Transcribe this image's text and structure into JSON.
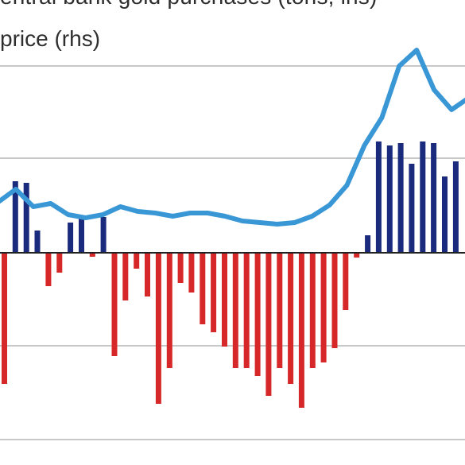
{
  "chart_data": {
    "type": "bar",
    "legend": [
      {
        "label": "Central bank gold purchases (tons, lhs)",
        "color": "#2e2e2e"
      },
      {
        "label": "Gold price (rhs)",
        "color": "#3a97d6"
      }
    ],
    "legend_visible_text": [
      "entral bank gold purchases (tons, lhs)",
      "price (rhs)"
    ],
    "colors": {
      "positive_bar": "#1a2a7c",
      "negative_bar": "#d62828",
      "price_line": "#3a97d6",
      "gridline": "#c8c8c8",
      "zero_line": "#222222"
    },
    "grid": true,
    "bars_relative": [
      -1.65,
      0.9,
      0.88,
      0.28,
      -0.42,
      -0.25,
      0.38,
      0.44,
      -0.05,
      0.45,
      -1.3,
      -0.6,
      -0.2,
      -0.55,
      -1.9,
      -1.45,
      -0.38,
      -0.5,
      -0.9,
      -1.0,
      -1.18,
      -1.45,
      -1.45,
      -1.55,
      -1.8,
      -1.45,
      -1.65,
      -1.95,
      -1.45,
      -1.38,
      -1.2,
      -0.72,
      -0.06,
      0.22,
      1.4,
      1.35,
      1.38,
      1.12,
      1.4,
      1.38,
      0.96,
      1.15
    ],
    "price_relative": [
      0.64,
      0.8,
      0.58,
      0.62,
      0.48,
      0.44,
      0.48,
      0.58,
      0.52,
      0.5,
      0.46,
      0.5,
      0.5,
      0.46,
      0.4,
      0.38,
      0.36,
      0.38,
      0.46,
      0.6,
      0.85,
      1.35,
      1.7,
      2.35,
      2.55,
      2.05,
      1.8,
      1.95
    ]
  }
}
